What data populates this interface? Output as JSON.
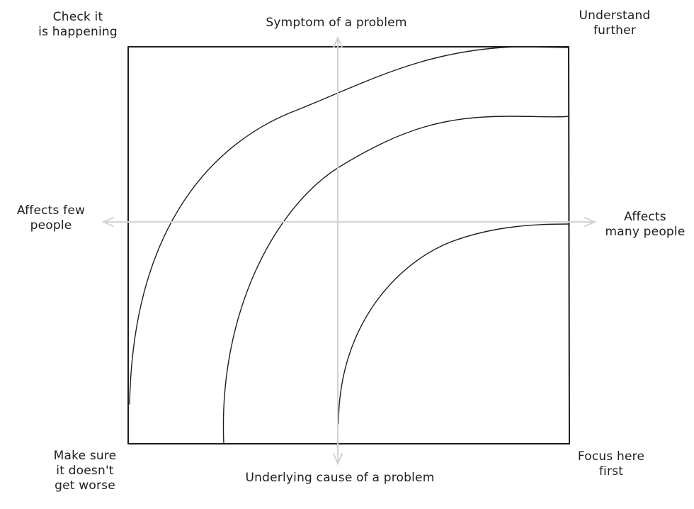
{
  "axes": {
    "top": "Symptom of a problem",
    "bottom": "Underlying cause of a problem",
    "left": [
      "Affects few",
      "people"
    ],
    "right": [
      "Affects",
      "many people"
    ]
  },
  "corners": {
    "top_left": [
      "Check it",
      "is happening"
    ],
    "top_right": [
      "Understand",
      "further"
    ],
    "bottom_left": [
      "Make sure",
      "it doesn't",
      "get worse"
    ],
    "bottom_right": [
      "Focus here",
      "first"
    ]
  },
  "colors": {
    "ink": "#1e1e1e",
    "axis": "#ced4da"
  }
}
